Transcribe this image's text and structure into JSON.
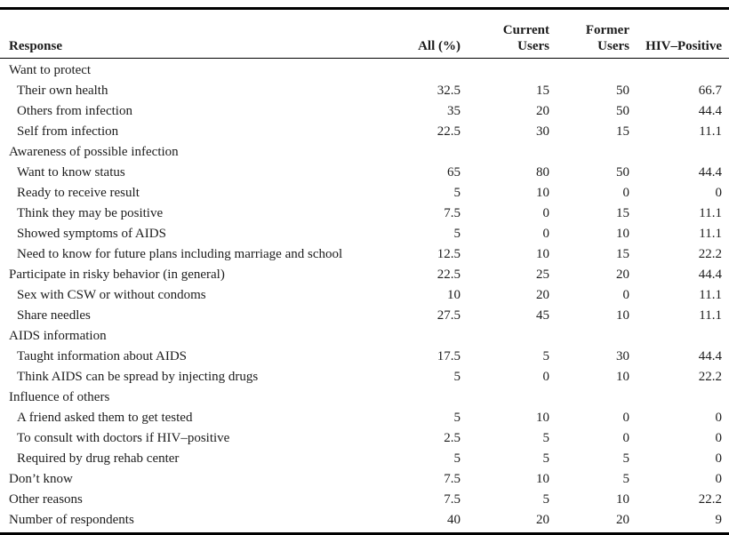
{
  "table": {
    "columns": [
      {
        "key": "response",
        "label": "Response"
      },
      {
        "key": "all-percent",
        "label": "All (%)"
      },
      {
        "key": "current-users",
        "label": "Current\nUsers"
      },
      {
        "key": "former-users",
        "label": "Former\nUsers"
      },
      {
        "key": "hiv-positive",
        "label": "HIV–Positive"
      }
    ],
    "rows": [
      {
        "label": "Want to protect",
        "indent": false,
        "values": [
          "",
          "",
          "",
          ""
        ]
      },
      {
        "label": "Their own health",
        "indent": true,
        "values": [
          "32.5",
          "15",
          "50",
          "66.7"
        ]
      },
      {
        "label": "Others from infection",
        "indent": true,
        "values": [
          "35",
          "20",
          "50",
          "44.4"
        ]
      },
      {
        "label": "Self from infection",
        "indent": true,
        "values": [
          "22.5",
          "30",
          "15",
          "11.1"
        ]
      },
      {
        "label": "Awareness of possible infection",
        "indent": false,
        "values": [
          "",
          "",
          "",
          ""
        ]
      },
      {
        "label": "Want to know status",
        "indent": true,
        "values": [
          "65",
          "80",
          "50",
          "44.4"
        ]
      },
      {
        "label": "Ready to receive result",
        "indent": true,
        "values": [
          "5",
          "10",
          "0",
          "0"
        ]
      },
      {
        "label": "Think they may be positive",
        "indent": true,
        "values": [
          "7.5",
          "0",
          "15",
          "11.1"
        ]
      },
      {
        "label": "Showed symptoms of AIDS",
        "indent": true,
        "values": [
          "5",
          "0",
          "10",
          "11.1"
        ]
      },
      {
        "label": "Need to know for future plans including marriage and school",
        "indent": true,
        "values": [
          "12.5",
          "10",
          "15",
          "22.2"
        ]
      },
      {
        "label": "Participate in risky behavior (in general)",
        "indent": false,
        "values": [
          "22.5",
          "25",
          "20",
          "44.4"
        ]
      },
      {
        "label": "Sex with CSW or without condoms",
        "indent": true,
        "values": [
          "10",
          "20",
          "0",
          "11.1"
        ]
      },
      {
        "label": "Share needles",
        "indent": true,
        "values": [
          "27.5",
          "45",
          "10",
          "11.1"
        ]
      },
      {
        "label": "AIDS information",
        "indent": false,
        "values": [
          "",
          "",
          "",
          ""
        ]
      },
      {
        "label": "Taught information about AIDS",
        "indent": true,
        "values": [
          "17.5",
          "5",
          "30",
          "44.4"
        ]
      },
      {
        "label": "Think AIDS can be spread by injecting drugs",
        "indent": true,
        "values": [
          "5",
          "0",
          "10",
          "22.2"
        ]
      },
      {
        "label": "Influence of others",
        "indent": false,
        "values": [
          "",
          "",
          "",
          ""
        ]
      },
      {
        "label": "A friend asked them to get tested",
        "indent": true,
        "values": [
          "5",
          "10",
          "0",
          "0"
        ]
      },
      {
        "label": "To consult with doctors if HIV–positive",
        "indent": true,
        "values": [
          "2.5",
          "5",
          "0",
          "0"
        ]
      },
      {
        "label": "Required by drug rehab center",
        "indent": true,
        "values": [
          "5",
          "5",
          "5",
          "0"
        ]
      },
      {
        "label": "Don’t know",
        "indent": false,
        "values": [
          "7.5",
          "10",
          "5",
          "0"
        ]
      },
      {
        "label": "Other reasons",
        "indent": false,
        "values": [
          "7.5",
          "5",
          "10",
          "22.2"
        ]
      },
      {
        "label": "Number of respondents",
        "indent": false,
        "values": [
          "40",
          "20",
          "20",
          "9"
        ]
      }
    ]
  }
}
